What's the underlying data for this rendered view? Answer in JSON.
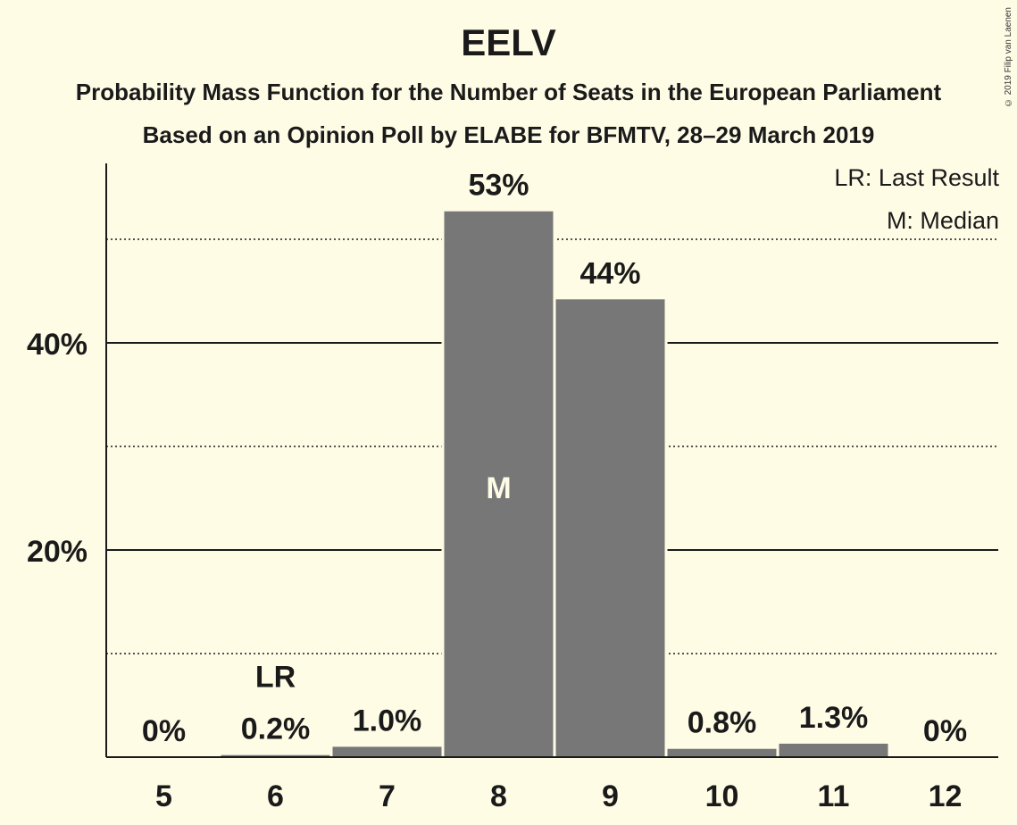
{
  "header": {
    "title": "EELV",
    "subtitle1": "Probability Mass Function for the Number of Seats in the European Parliament",
    "subtitle2": "Based on an Opinion Poll by ELABE for BFMTV, 28–29 March 2019",
    "copyright": "© 2019 Filip van Laenen"
  },
  "legend": {
    "lr": "LR: Last Result",
    "m": "M: Median"
  },
  "colors": {
    "background": "#fffce6",
    "bar": "#777777",
    "text": "#1a1a1a"
  },
  "chart_data": {
    "type": "bar",
    "title": "EELV",
    "categories": [
      "5",
      "6",
      "7",
      "8",
      "9",
      "10",
      "11",
      "12"
    ],
    "values": [
      0,
      0.2,
      1.0,
      52.7,
      44.2,
      0.8,
      1.3,
      0
    ],
    "labels": [
      "0%",
      "0.2%",
      "1.0%",
      "53%",
      "44%",
      "0.8%",
      "1.3%",
      "0%"
    ],
    "ylim": [
      0,
      57.5
    ],
    "yticks": [
      20,
      40
    ],
    "ytick_labels": [
      "20%",
      "40%"
    ],
    "minor_gridlines": [
      10,
      30,
      50
    ],
    "last_result": {
      "category": "6",
      "label": "LR"
    },
    "median": {
      "category": "8",
      "label": "M"
    },
    "grid": true
  }
}
